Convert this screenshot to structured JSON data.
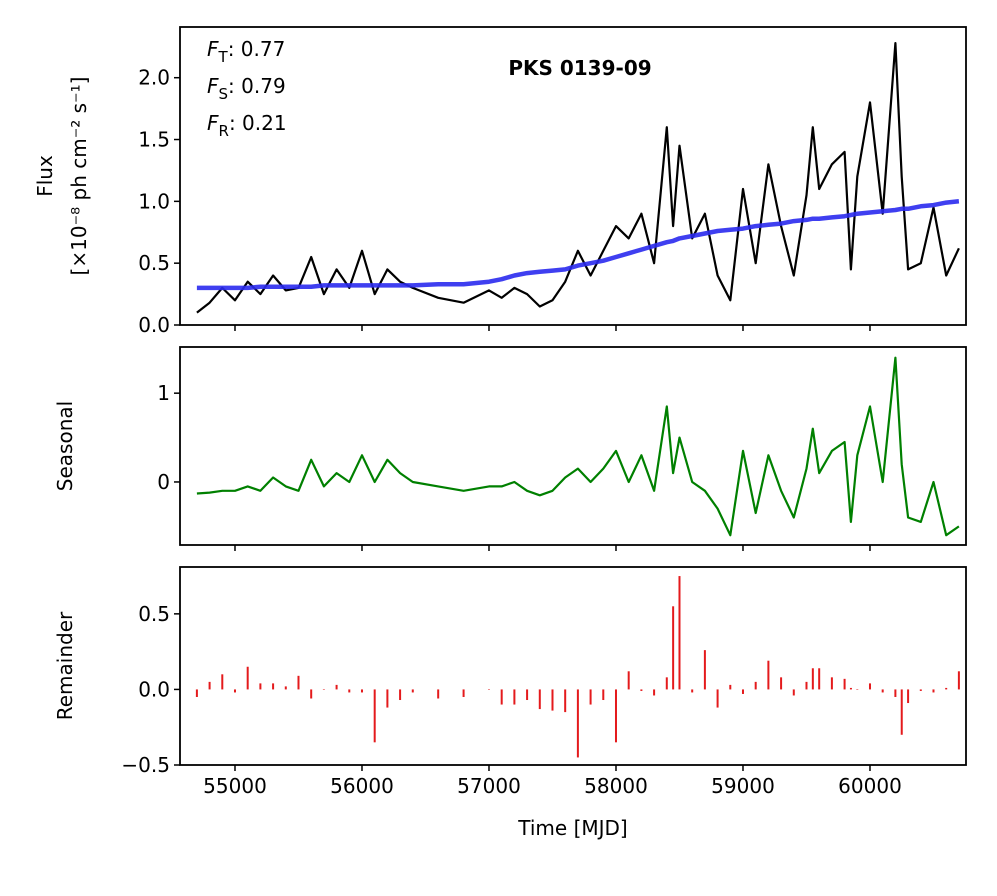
{
  "chart_data": [
    {
      "type": "line",
      "title": "PKS 0139-09",
      "ylabel": [
        "Flux",
        "[×10⁻⁸ ph cm⁻² s⁻¹]"
      ],
      "annotations": [
        {
          "symbol": "F",
          "subscript": "T",
          "text": ": 0.77"
        },
        {
          "symbol": "F",
          "subscript": "S",
          "text": ": 0.79"
        },
        {
          "symbol": "F",
          "subscript": "R",
          "text": ": 0.21"
        }
      ],
      "x": [
        54700,
        54800,
        54900,
        55000,
        55100,
        55200,
        55300,
        55400,
        55500,
        55600,
        55700,
        55800,
        55900,
        56000,
        56100,
        56200,
        56300,
        56400,
        56600,
        56800,
        57000,
        57100,
        57200,
        57300,
        57400,
        57500,
        57600,
        57700,
        57800,
        57900,
        58000,
        58100,
        58200,
        58300,
        58400,
        58450,
        58500,
        58600,
        58700,
        58800,
        58900,
        59000,
        59100,
        59200,
        59300,
        59400,
        59500,
        59550,
        59600,
        59700,
        59800,
        59850,
        59900,
        60000,
        60100,
        60200,
        60250,
        60300,
        60400,
        60500,
        60600,
        60700
      ],
      "series": [
        {
          "color": "#000000",
          "values": [
            0.1,
            0.18,
            0.3,
            0.2,
            0.35,
            0.25,
            0.4,
            0.28,
            0.3,
            0.55,
            0.25,
            0.45,
            0.3,
            0.6,
            0.25,
            0.45,
            0.35,
            0.3,
            0.22,
            0.18,
            0.28,
            0.22,
            0.3,
            0.25,
            0.15,
            0.2,
            0.35,
            0.6,
            0.4,
            0.6,
            0.8,
            0.7,
            0.9,
            0.5,
            1.6,
            0.8,
            1.45,
            0.7,
            0.9,
            0.4,
            0.2,
            1.1,
            0.5,
            1.3,
            0.8,
            0.4,
            1.05,
            1.6,
            1.1,
            1.3,
            1.4,
            0.45,
            1.2,
            1.8,
            0.9,
            2.28,
            1.2,
            0.45,
            0.5,
            0.95,
            0.4,
            0.62
          ]
        },
        {
          "color": "#2a2aee",
          "values": [
            0.3,
            0.3,
            0.3,
            0.3,
            0.3,
            0.31,
            0.31,
            0.31,
            0.31,
            0.31,
            0.32,
            0.32,
            0.32,
            0.32,
            0.32,
            0.32,
            0.32,
            0.32,
            0.33,
            0.33,
            0.35,
            0.37,
            0.4,
            0.42,
            0.43,
            0.44,
            0.45,
            0.48,
            0.5,
            0.52,
            0.55,
            0.58,
            0.61,
            0.64,
            0.67,
            0.68,
            0.7,
            0.72,
            0.74,
            0.76,
            0.77,
            0.78,
            0.8,
            0.81,
            0.82,
            0.84,
            0.85,
            0.86,
            0.86,
            0.87,
            0.88,
            0.89,
            0.9,
            0.91,
            0.92,
            0.93,
            0.94,
            0.94,
            0.96,
            0.97,
            0.99,
            1.0
          ]
        }
      ],
      "xlim": [
        54567,
        60756
      ],
      "xticks": [
        55000,
        56000,
        57000,
        58000,
        59000,
        60000
      ],
      "ylim": [
        0,
        2.41
      ],
      "yticks": [
        {
          "value": 0,
          "label": "0.0"
        },
        0.5,
        {
          "value": 1,
          "label": "1.0"
        },
        1.5,
        {
          "value": 2,
          "label": "2.0"
        }
      ]
    },
    {
      "type": "line",
      "ylabel": [
        "Seasonal"
      ],
      "x": [
        54700,
        54800,
        54900,
        55000,
        55100,
        55200,
        55300,
        55400,
        55500,
        55600,
        55700,
        55800,
        55900,
        56000,
        56100,
        56200,
        56300,
        56400,
        56600,
        56800,
        57000,
        57100,
        57200,
        57300,
        57400,
        57500,
        57600,
        57700,
        57800,
        57900,
        58000,
        58100,
        58200,
        58300,
        58400,
        58450,
        58500,
        58600,
        58700,
        58800,
        58900,
        59000,
        59100,
        59200,
        59300,
        59400,
        59500,
        59550,
        59600,
        59700,
        59800,
        59850,
        59900,
        60000,
        60100,
        60200,
        60250,
        60300,
        60400,
        60500,
        60600,
        60700
      ],
      "series": [
        {
          "color": "#008000",
          "values": [
            -0.13,
            -0.12,
            -0.1,
            -0.1,
            -0.05,
            -0.1,
            0.05,
            -0.05,
            -0.1,
            0.25,
            -0.05,
            0.1,
            0.0,
            0.3,
            0.0,
            0.25,
            0.1,
            0.0,
            -0.05,
            -0.1,
            -0.05,
            -0.05,
            0.0,
            -0.1,
            -0.15,
            -0.1,
            0.05,
            0.15,
            0.0,
            0.15,
            0.35,
            0.0,
            0.3,
            -0.1,
            0.85,
            0.1,
            0.5,
            0.0,
            -0.1,
            -0.3,
            -0.6,
            0.35,
            -0.35,
            0.3,
            -0.1,
            -0.4,
            0.15,
            0.6,
            0.1,
            0.35,
            0.45,
            -0.45,
            0.3,
            0.85,
            0.0,
            1.4,
            0.2,
            -0.4,
            -0.45,
            0.0,
            -0.6,
            -0.5
          ]
        }
      ],
      "xlim": [
        54567,
        60756
      ],
      "xticks": [
        55000,
        56000,
        57000,
        58000,
        59000,
        60000
      ],
      "ylim": [
        -0.71,
        1.52
      ],
      "yticks": [
        0,
        1
      ]
    },
    {
      "type": "bar",
      "ylabel": [
        "Remainder"
      ],
      "xlabel": "Time [MJD]",
      "x": [
        54700,
        54800,
        54900,
        55000,
        55100,
        55200,
        55300,
        55400,
        55500,
        55600,
        55700,
        55800,
        55900,
        56000,
        56100,
        56200,
        56300,
        56400,
        56600,
        56800,
        57000,
        57100,
        57200,
        57300,
        57400,
        57500,
        57600,
        57700,
        57800,
        57900,
        58000,
        58100,
        58200,
        58300,
        58400,
        58450,
        58500,
        58600,
        58700,
        58800,
        58900,
        59000,
        59100,
        59200,
        59300,
        59400,
        59500,
        59550,
        59600,
        59700,
        59800,
        59850,
        59900,
        60000,
        60100,
        60200,
        60250,
        60300,
        60400,
        60500,
        60600,
        60700
      ],
      "color": "#e41a1c",
      "values": [
        -0.05,
        0.05,
        0.1,
        -0.02,
        0.15,
        0.04,
        0.04,
        0.02,
        0.09,
        -0.06,
        0.0,
        0.03,
        -0.02,
        -0.02,
        -0.35,
        -0.12,
        -0.07,
        -0.02,
        -0.06,
        -0.05,
        0.0,
        -0.1,
        -0.1,
        -0.07,
        -0.13,
        -0.14,
        -0.15,
        -0.45,
        -0.1,
        -0.07,
        -0.35,
        0.12,
        -0.01,
        -0.04,
        0.08,
        0.55,
        0.75,
        -0.02,
        0.26,
        -0.12,
        0.03,
        -0.03,
        0.05,
        0.19,
        0.08,
        -0.04,
        0.05,
        0.14,
        0.14,
        0.08,
        0.07,
        0.01,
        0.0,
        0.04,
        -0.02,
        -0.05,
        -0.3,
        -0.09,
        -0.01,
        -0.02,
        0.01,
        0.12
      ],
      "xlim": [
        54567,
        60756
      ],
      "xticks": [
        55000,
        56000,
        57000,
        58000,
        59000,
        60000
      ],
      "ylim": [
        -0.5,
        0.81
      ],
      "yticks": [
        {
          "value": -0.5,
          "label": "−0.5"
        },
        {
          "value": 0,
          "label": "0.0"
        },
        0.5
      ]
    }
  ]
}
